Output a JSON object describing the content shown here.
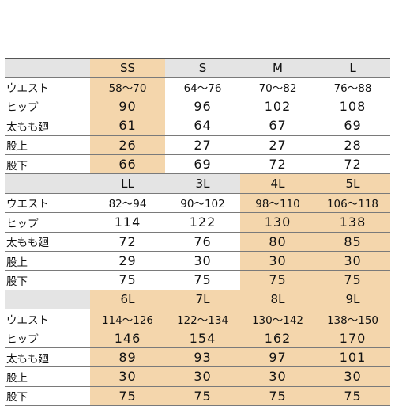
{
  "highlight_color": "#f4d6ac",
  "header_color": "#e4e4e4",
  "row_labels": [
    "ウエスト",
    "ヒップ",
    "太もも廻",
    "股上",
    "股下"
  ],
  "tables": [
    {
      "sizes": [
        "SS",
        "S",
        "M",
        "L"
      ],
      "highlighted_columns": [
        0
      ],
      "rows": [
        [
          "58〜70",
          "64〜76",
          "70〜82",
          "76〜88"
        ],
        [
          "90",
          "96",
          "102",
          "108"
        ],
        [
          "61",
          "64",
          "67",
          "69"
        ],
        [
          "26",
          "27",
          "27",
          "28"
        ],
        [
          "66",
          "69",
          "72",
          "72"
        ]
      ]
    },
    {
      "sizes": [
        "LL",
        "3L",
        "4L",
        "5L"
      ],
      "highlighted_columns": [
        2,
        3
      ],
      "rows": [
        [
          "82〜94",
          "90〜102",
          "98〜110",
          "106〜118"
        ],
        [
          "114",
          "122",
          "130",
          "138"
        ],
        [
          "72",
          "76",
          "80",
          "85"
        ],
        [
          "29",
          "30",
          "30",
          "30"
        ],
        [
          "75",
          "75",
          "75",
          "75"
        ]
      ]
    },
    {
      "sizes": [
        "6L",
        "7L",
        "8L",
        "9L"
      ],
      "highlighted_columns": [
        0,
        1,
        2,
        3
      ],
      "rows": [
        [
          "114〜126",
          "122〜134",
          "130〜142",
          "138〜150"
        ],
        [
          "146",
          "154",
          "162",
          "170"
        ],
        [
          "89",
          "93",
          "97",
          "101"
        ],
        [
          "30",
          "30",
          "30",
          "30"
        ],
        [
          "75",
          "75",
          "75",
          "75"
        ]
      ]
    }
  ]
}
